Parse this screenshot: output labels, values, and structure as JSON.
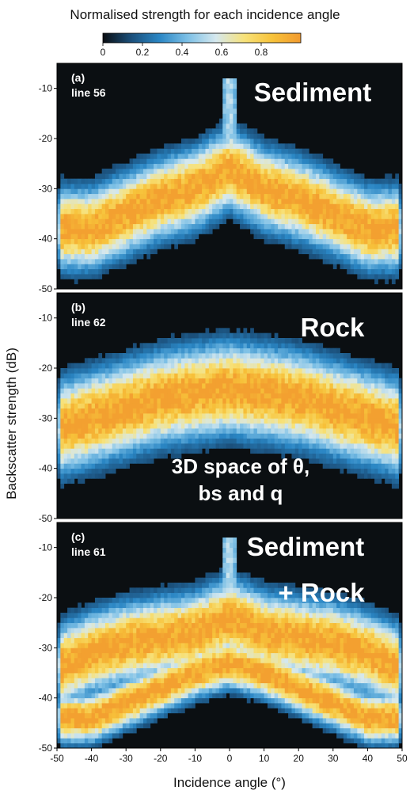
{
  "colorbar": {
    "title": "Normalised strength for each incidence angle",
    "ticks": [
      "0",
      "0.2",
      "0.4",
      "0.6",
      "0.8"
    ],
    "tick_values": [
      0,
      0.2,
      0.4,
      0.6,
      0.8
    ],
    "range": [
      0,
      1
    ],
    "colors": [
      "#0a0e12",
      "#1b4f7a",
      "#2a86c4",
      "#7dc0e6",
      "#d5e8ee",
      "#f7e27a",
      "#f7c23a",
      "#f29a2e"
    ]
  },
  "chart_data": [
    {
      "type": "heatmap",
      "panel": "(a)",
      "line": "line 56",
      "label": [
        "Sediment"
      ],
      "ridges": [
        {
          "x": [
            -50,
            -40,
            -30,
            -20,
            -10,
            0,
            10,
            20,
            30,
            40,
            50
          ],
          "y": [
            -38,
            -38,
            -35,
            -32,
            -30,
            -26,
            -30,
            -32,
            -35,
            -38,
            -38
          ]
        }
      ],
      "specular_peak": {
        "x": 0,
        "y_top": -8
      }
    },
    {
      "type": "heatmap",
      "panel": "(b)",
      "line": "line 62",
      "label": [
        "Rock"
      ],
      "annotation": [
        "3D space of θ,",
        "bs and q"
      ],
      "ridges": [
        {
          "x": [
            -50,
            -40,
            -30,
            -20,
            -10,
            0,
            10,
            20,
            30,
            40,
            50
          ],
          "y": [
            -32,
            -30,
            -28,
            -26,
            -25,
            -24,
            -25,
            -26,
            -28,
            -30,
            -32
          ]
        }
      ]
    },
    {
      "type": "heatmap",
      "panel": "(c)",
      "line": "line 61",
      "label": [
        "Sediment",
        "+ Rock"
      ],
      "ridges": [
        {
          "x": [
            -50,
            -40,
            -30,
            -20,
            -10,
            0,
            10,
            20,
            30,
            40,
            50
          ],
          "y": [
            -34,
            -31,
            -29,
            -28,
            -27,
            -24,
            -27,
            -28,
            -29,
            -31,
            -34
          ]
        },
        {
          "x": [
            -45,
            -40,
            -30,
            -20,
            -10,
            0,
            10,
            20,
            30,
            40,
            45
          ],
          "y": [
            -44,
            -44,
            -41,
            -38,
            -35,
            -33,
            -35,
            -38,
            -41,
            -44,
            -44
          ]
        }
      ],
      "specular_peak": {
        "x": 0,
        "y_top": -8
      }
    }
  ],
  "axes": {
    "xlabel": "Incidence angle (°)",
    "ylabel": "Backscatter strength (dB)",
    "xlim": [
      -50,
      50
    ],
    "ylim": [
      -50,
      -5
    ],
    "xticks": [
      "-50",
      "-40",
      "-30",
      "-20",
      "-10",
      "0",
      "10",
      "20",
      "30",
      "40",
      "50"
    ],
    "xtick_values": [
      -50,
      -40,
      -30,
      -20,
      -10,
      0,
      10,
      20,
      30,
      40,
      50
    ],
    "yticks": [
      "-10",
      "-20",
      "-30",
      "-40",
      "-50"
    ],
    "ytick_values": [
      -10,
      -20,
      -30,
      -40,
      -50
    ]
  }
}
